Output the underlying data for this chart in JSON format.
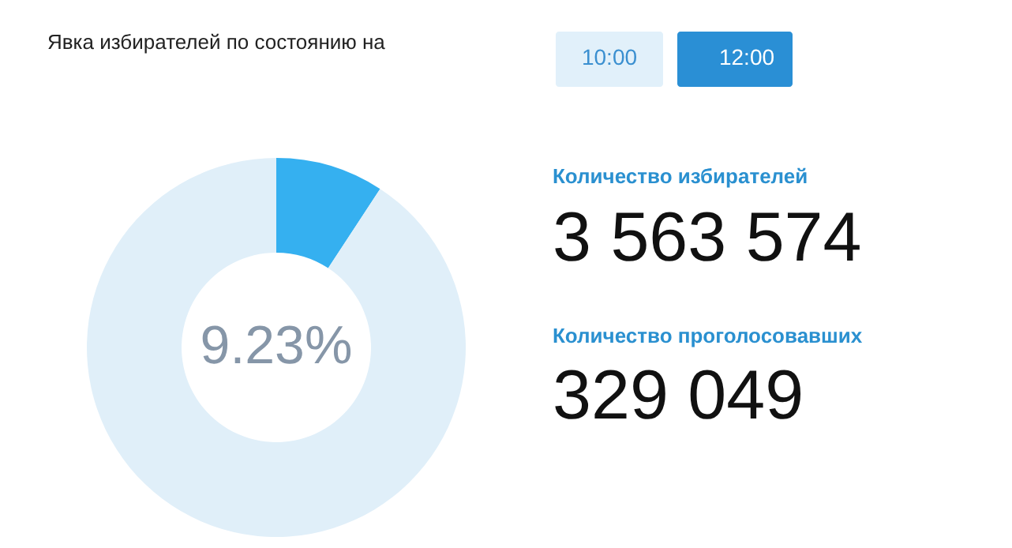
{
  "chart_data": {
    "type": "donut",
    "categories": [
      null,
      null
    ],
    "values": [
      9.23,
      90.77
    ],
    "colors": [
      "#35b0f0",
      "#e0eff9"
    ],
    "value_labels": [
      "9.23%",
      null
    ],
    "annotations": [
      "Явка избирателей по состоянию на",
      "10:00",
      "12:00",
      "Количество избирателей",
      "3 563 574",
      "Количество проголосовавших",
      "329 049"
    ]
  }
}
